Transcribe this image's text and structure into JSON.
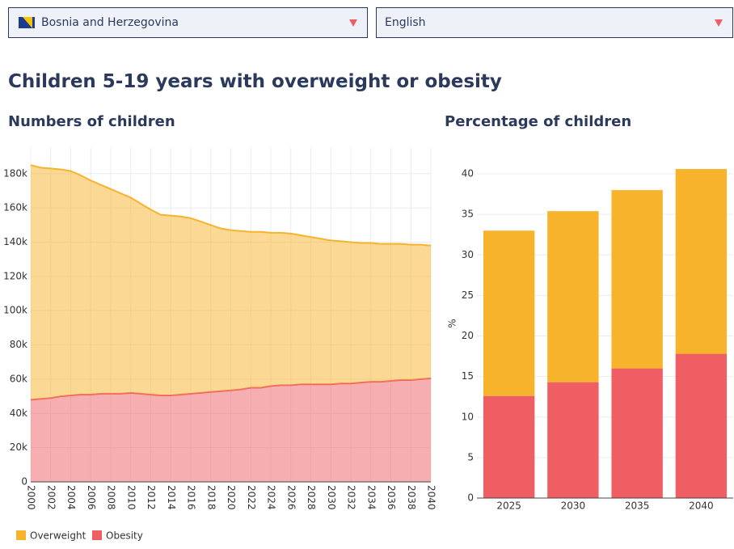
{
  "selectors": {
    "country": "Bosnia and Herzegovina",
    "language": "English"
  },
  "heading": "Children 5-19 years with overweight or obesity",
  "chart_data": [
    {
      "type": "area",
      "title": "Numbers of children",
      "x": [
        2000,
        2001,
        2002,
        2003,
        2004,
        2005,
        2006,
        2007,
        2008,
        2009,
        2010,
        2011,
        2012,
        2013,
        2014,
        2015,
        2016,
        2017,
        2018,
        2019,
        2020,
        2021,
        2022,
        2023,
        2024,
        2025,
        2026,
        2027,
        2028,
        2029,
        2030,
        2031,
        2032,
        2033,
        2034,
        2035,
        2036,
        2037,
        2038,
        2039,
        2040
      ],
      "series": [
        {
          "name": "Overweight",
          "color": "#f7b32b",
          "values": [
            137000,
            135000,
            134000,
            132500,
            131000,
            128000,
            125000,
            122000,
            119500,
            117000,
            114000,
            111000,
            108000,
            105500,
            105000,
            104000,
            102500,
            100000,
            97500,
            95000,
            93500,
            92500,
            91000,
            91000,
            89500,
            89000,
            88500,
            87000,
            86000,
            85000,
            84000,
            83000,
            82500,
            81500,
            81000,
            80500,
            80000,
            79500,
            79000,
            78500,
            77500
          ]
        },
        {
          "name": "Obesity",
          "color": "#ef5e63",
          "values": [
            48000,
            48500,
            49000,
            50000,
            50500,
            51000,
            51000,
            51500,
            51500,
            51500,
            52000,
            51500,
            51000,
            50500,
            50500,
            51000,
            51500,
            52000,
            52500,
            53000,
            53500,
            54000,
            55000,
            55000,
            56000,
            56500,
            56500,
            57000,
            57000,
            57000,
            57000,
            57500,
            57500,
            58000,
            58500,
            58500,
            59000,
            59500,
            59500,
            60000,
            60500
          ]
        }
      ],
      "xlim": [
        2000,
        2040
      ],
      "xticks": [
        2000,
        2002,
        2004,
        2006,
        2008,
        2010,
        2012,
        2014,
        2016,
        2018,
        2020,
        2022,
        2024,
        2026,
        2028,
        2030,
        2032,
        2034,
        2036,
        2038,
        2040
      ],
      "ylim": [
        0,
        195000
      ],
      "yticks": [
        0,
        {
          "value": 20000,
          "label": "20k"
        },
        {
          "value": 40000,
          "label": "40k"
        },
        {
          "value": 60000,
          "label": "60k"
        },
        {
          "value": 80000,
          "label": "80k"
        },
        {
          "value": 100000,
          "label": "100k"
        },
        {
          "value": 120000,
          "label": "120k"
        },
        {
          "value": 140000,
          "label": "140k"
        },
        {
          "value": 160000,
          "label": "160k"
        },
        {
          "value": 180000,
          "label": "180k"
        }
      ],
      "grid": true,
      "stacked": true,
      "legend": "bottom-left"
    },
    {
      "type": "bar",
      "title": "Percentage of children",
      "ylabel": "%",
      "categories": [
        "2025",
        "2030",
        "2035",
        "2040"
      ],
      "series": [
        {
          "name": "Overweight",
          "color": "#f7b32b",
          "values": [
            20.4,
            21.1,
            22.0,
            22.8
          ]
        },
        {
          "name": "Obesity",
          "color": "#ef5e63",
          "values": [
            12.6,
            14.3,
            16.0,
            17.8
          ]
        }
      ],
      "ylim": [
        0,
        42
      ],
      "yticks": [
        0,
        5,
        10,
        15,
        20,
        25,
        30,
        35,
        40
      ],
      "grid": true,
      "stacked": true
    }
  ]
}
